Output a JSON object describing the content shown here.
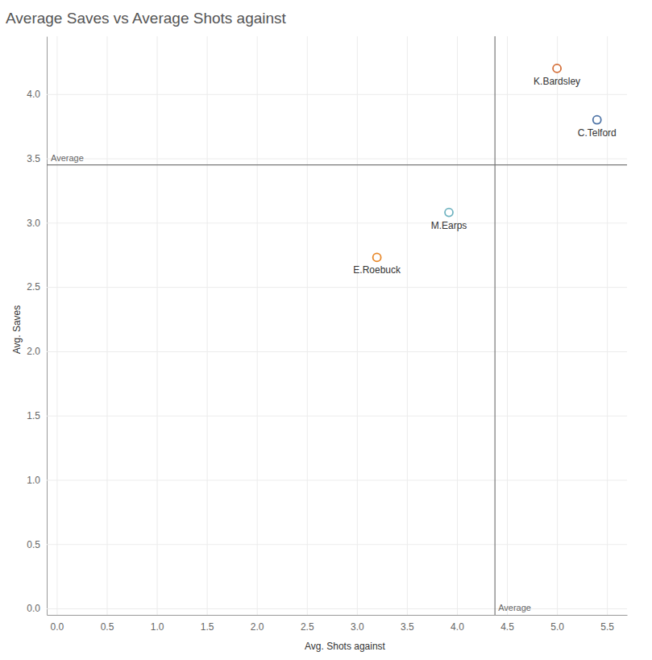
{
  "chart_data": {
    "type": "scatter",
    "title": "Average Saves vs Average Shots against",
    "x_label": "Avg. Shots against",
    "y_label": "Avg. Saves",
    "labels": [
      "K.Bardsley",
      "C.Telford",
      "M.Earps",
      "E.Roebuck"
    ],
    "x": [
      5.0,
      5.4,
      3.92,
      3.2
    ],
    "values": [
      4.2,
      3.8,
      3.08,
      2.73
    ],
    "colors": [
      "#d4703a",
      "#4e74a6",
      "#73b5c2",
      "#e8892b"
    ],
    "marker": "circle",
    "xlim": [
      -0.1,
      5.7
    ],
    "ylim": [
      -0.05,
      4.45
    ],
    "xticks": [
      {
        "value": 0,
        "label": "0.0"
      },
      {
        "value": 0.5,
        "label": "0.5"
      },
      {
        "value": 1,
        "label": "1.0"
      },
      {
        "value": 1.5,
        "label": "1.5"
      },
      {
        "value": 2,
        "label": "2.0"
      },
      {
        "value": 2.5,
        "label": "2.5"
      },
      {
        "value": 3,
        "label": "3.0"
      },
      {
        "value": 3.5,
        "label": "3.5"
      },
      {
        "value": 4,
        "label": "4.0"
      },
      {
        "value": 4.5,
        "label": "4.5"
      },
      {
        "value": 5,
        "label": "5.0"
      },
      {
        "value": 5.5,
        "label": "5.5"
      }
    ],
    "yticks": [
      {
        "value": 0,
        "label": "0.0"
      },
      {
        "value": 0.5,
        "label": "0.5"
      },
      {
        "value": 1,
        "label": "1.0"
      },
      {
        "value": 1.5,
        "label": "1.5"
      },
      {
        "value": 2,
        "label": "2.0"
      },
      {
        "value": 2.5,
        "label": "2.5"
      },
      {
        "value": 3,
        "label": "3.0"
      },
      {
        "value": 3.5,
        "label": "3.5"
      },
      {
        "value": 4,
        "label": "4.0"
      }
    ],
    "grid": true,
    "annotations": [
      {
        "axis": "y",
        "value": 3.45,
        "label": "Average"
      },
      {
        "axis": "x",
        "value": 4.38,
        "label": "Average"
      }
    ]
  }
}
